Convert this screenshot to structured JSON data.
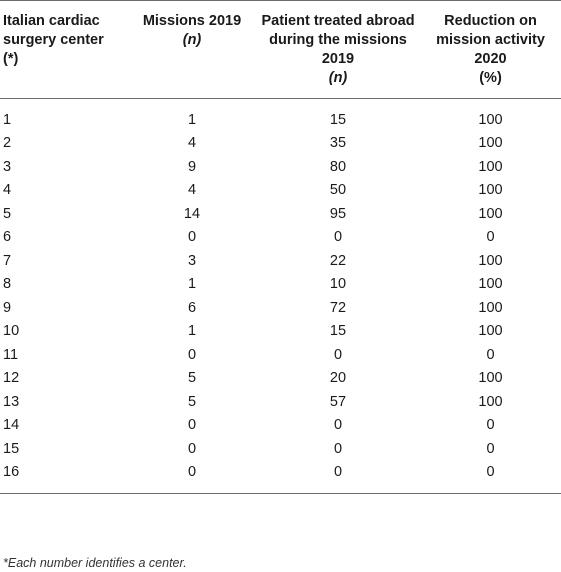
{
  "table": {
    "headers": {
      "center": [
        "Italian cardiac",
        "surgery center",
        "(*)"
      ],
      "missions": [
        "Missions 2019",
        "(n)"
      ],
      "patients": [
        "Patient treated abroad",
        "during the missions",
        "2019",
        "(n)"
      ],
      "reduction": [
        "Reduction on",
        "mission activity",
        "2020",
        "(%)"
      ]
    },
    "rows": [
      [
        "1",
        "1",
        "15",
        "100"
      ],
      [
        "2",
        "4",
        "35",
        "100"
      ],
      [
        "3",
        "9",
        "80",
        "100"
      ],
      [
        "4",
        "4",
        "50",
        "100"
      ],
      [
        "5",
        "14",
        "95",
        "100"
      ],
      [
        "6",
        "0",
        "0",
        "0"
      ],
      [
        "7",
        "3",
        "22",
        "100"
      ],
      [
        "8",
        "1",
        "10",
        "100"
      ],
      [
        "9",
        "6",
        "72",
        "100"
      ],
      [
        "10",
        "1",
        "15",
        "100"
      ],
      [
        "11",
        "0",
        "0",
        "0"
      ],
      [
        "12",
        "5",
        "20",
        "100"
      ],
      [
        "13",
        "5",
        "57",
        "100"
      ],
      [
        "14",
        "0",
        "0",
        "0"
      ],
      [
        "15",
        "0",
        "0",
        "0"
      ],
      [
        "16",
        "0",
        "0",
        "0"
      ]
    ]
  },
  "footnote": "*Each number identifies a center."
}
